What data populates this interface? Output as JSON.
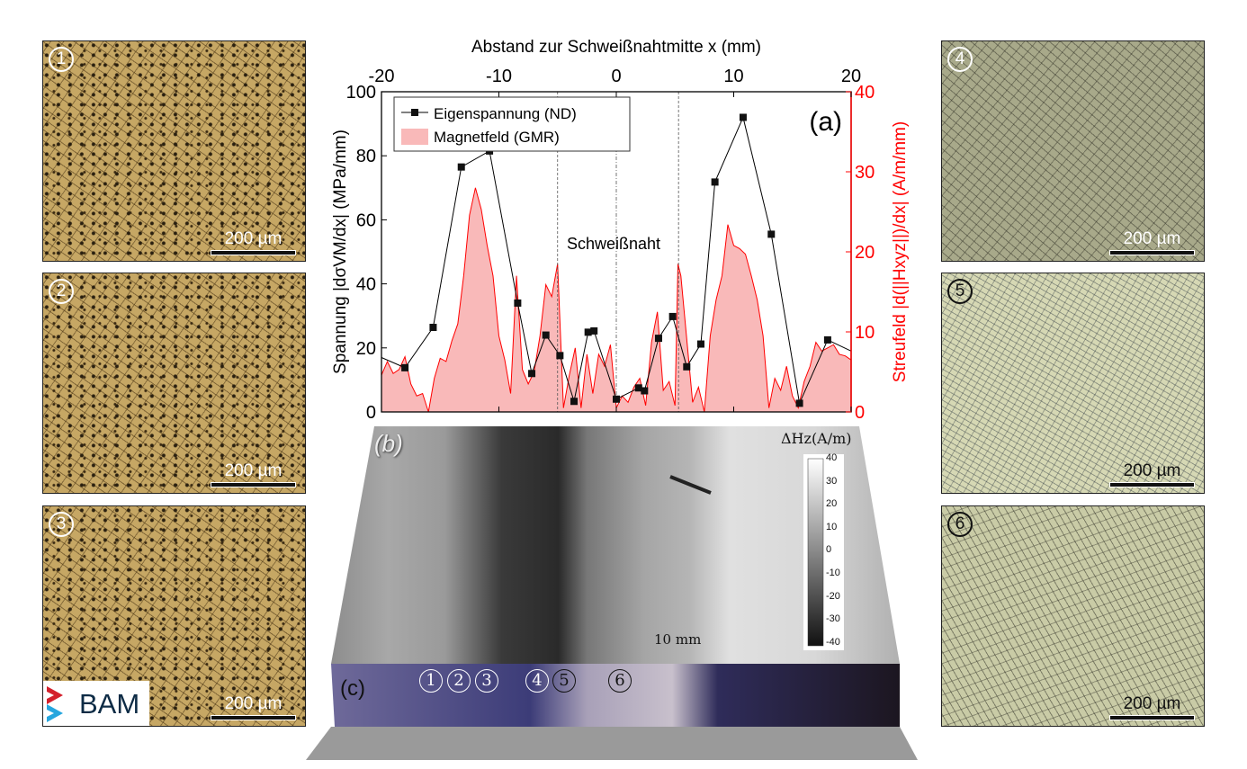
{
  "micrographs": {
    "left": [
      {
        "label": "1",
        "scale": "200 µm"
      },
      {
        "label": "2",
        "scale": "200 µm"
      },
      {
        "label": "3",
        "scale": "200 µm"
      }
    ],
    "right": [
      {
        "label": "4",
        "scale": "200 µm"
      },
      {
        "label": "5",
        "scale": "200 µm"
      },
      {
        "label": "6",
        "scale": "200 µm"
      }
    ]
  },
  "logo": "BAM",
  "block": {
    "label_b": "(b)",
    "label_c": "(c)",
    "unit": "ΔHz(A/m)",
    "scalebar": "10 mm",
    "colorbar_ticks": [
      "40",
      "30",
      "20",
      "10",
      "0",
      "-10",
      "-20",
      "-30",
      "-40"
    ],
    "positions": [
      "1",
      "2",
      "3",
      "4",
      "5",
      "6"
    ]
  },
  "colors": {
    "stress": "#000000",
    "field": "#ff0000",
    "field_fill": "#f9b9b9"
  },
  "chart_data": {
    "type": "line",
    "title": "",
    "panel_label": "(a)",
    "annotation": "Schweißnaht",
    "xlabel": "Abstand zur Schweißnahtmitte x (mm)",
    "ylabel": "Spannung |dσVM/dx| (MPa/mm)",
    "y2label": "Streufeld |d(||Hxyz||)/dx| (A/m/mm)",
    "xlim": [
      -20,
      20
    ],
    "ylim": [
      0,
      100
    ],
    "y2lim": [
      0,
      40
    ],
    "xticks": [
      "-20",
      "-10",
      "0",
      "10",
      "20"
    ],
    "yticks": [
      "0",
      "20",
      "40",
      "60",
      "80",
      "100"
    ],
    "y2ticks": [
      "0",
      "10",
      "20",
      "30",
      "40"
    ],
    "grid": false,
    "legend_placement": "top-left",
    "series": [
      {
        "name": "Eigenspannung (ND)",
        "axis": "left",
        "type": "line-markers",
        "x": [
          -20,
          -18,
          -15.6,
          -13.2,
          -10.8,
          -8.4,
          -7.2,
          -6,
          -4.8,
          -3.6,
          -2.4,
          -1.9,
          0,
          1.9,
          2.4,
          3.6,
          4.8,
          6,
          7.2,
          8.4,
          10.8,
          13.2,
          15.6,
          18,
          20
        ],
        "y": [
          17,
          13.8,
          26.4,
          76.5,
          81.5,
          34,
          12,
          24,
          17.6,
          3.3,
          24.9,
          25.3,
          4,
          7.5,
          6.6,
          23,
          29.8,
          14.1,
          21.2,
          71.8,
          92,
          55.5,
          2.7,
          22.5,
          19
        ]
      },
      {
        "name": "Magnetfeld (GMR)",
        "axis": "right",
        "type": "area",
        "x": [
          -20,
          -19.5,
          -19,
          -18.5,
          -18,
          -17.5,
          -17,
          -16.5,
          -16,
          -15.5,
          -15,
          -14.5,
          -14,
          -13.5,
          -13,
          -12.5,
          -12,
          -11.5,
          -11,
          -10.5,
          -10,
          -9.5,
          -9,
          -8.5,
          -8,
          -7.5,
          -7,
          -6.5,
          -6,
          -5.5,
          -5,
          -4.5,
          -4,
          -3.5,
          -3,
          -2.5,
          -2,
          -1.5,
          -1,
          -0.5,
          0,
          0.5,
          1,
          1.5,
          2,
          2.5,
          3,
          3.5,
          4,
          4.5,
          5,
          5.25,
          5.5,
          6,
          6.5,
          7,
          7.5,
          8,
          8.5,
          9,
          9.5,
          10,
          10.5,
          11,
          11.5,
          12,
          12.5,
          13,
          13.5,
          14,
          14.5,
          15,
          15.5,
          16,
          16.5,
          17,
          17.5,
          18,
          18.5,
          19,
          19.5,
          20
        ],
        "y": [
          4.6,
          6.3,
          4.8,
          5.3,
          6.9,
          3.5,
          2,
          2.3,
          0,
          4.2,
          6.7,
          6.3,
          8.9,
          11,
          17,
          24.6,
          28,
          25.3,
          20.8,
          17,
          9.5,
          6.5,
          2.3,
          17,
          5.3,
          3.5,
          5,
          9.5,
          15.9,
          14.4,
          18.5,
          0.5,
          4.6,
          8,
          0.5,
          7.2,
          2.3,
          7.2,
          5.7,
          8.4,
          0.5,
          2,
          1.2,
          3.1,
          4.2,
          0.8,
          8.7,
          12.5,
          2.7,
          3.8,
          0.8,
          18.5,
          17,
          9.1,
          1.2,
          3.1,
          0,
          9.5,
          14,
          17,
          23.4,
          20.8,
          20.4,
          19.7,
          17,
          14,
          9.5,
          0.5,
          4.2,
          2.7,
          5.7,
          2,
          0.5,
          3.8,
          5.7,
          8.7,
          7.6,
          8,
          8.4,
          7.2,
          7,
          6.5
        ]
      }
    ],
    "reference_lines_x": [
      -5,
      0,
      5.3
    ]
  }
}
